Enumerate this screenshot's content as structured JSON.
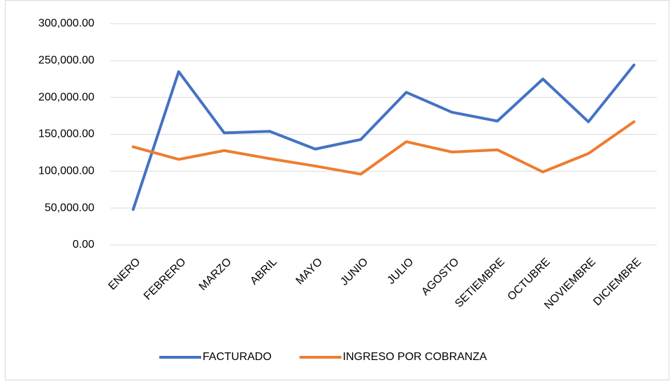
{
  "chart_data": {
    "type": "line",
    "categories": [
      "ENERO",
      "FEBRERO",
      "MARZO",
      "ABRIL",
      "MAYO",
      "JUNIO",
      "JULIO",
      "AGOSTO",
      "SETIEMBRE",
      "OCTUBRE",
      "NOVIEMBRE",
      "DICIEMBRE"
    ],
    "series": [
      {
        "name": "FACTURADO",
        "color": "#4472c4",
        "values": [
          48000,
          235000,
          152000,
          154000,
          130000,
          143000,
          207000,
          180000,
          168000,
          225000,
          167000,
          244000
        ]
      },
      {
        "name": "INGRESO POR COBRANZA",
        "color": "#ed7d31",
        "values": [
          133000,
          116000,
          128000,
          117000,
          107000,
          96000,
          140000,
          126000,
          129000,
          99000,
          124000,
          167000
        ]
      }
    ],
    "ylim": [
      0,
      300000
    ],
    "yticks": [
      {
        "value": 0,
        "label": "0.00"
      },
      {
        "value": 50000,
        "label": "50,000.00"
      },
      {
        "value": 100000,
        "label": "100,000.00"
      },
      {
        "value": 150000,
        "label": "150,000.00"
      },
      {
        "value": 200000,
        "label": "200,000.00"
      },
      {
        "value": 250000,
        "label": "250,000.00"
      },
      {
        "value": 300000,
        "label": "300,000.00"
      }
    ],
    "grid": true,
    "legend": "bottom"
  }
}
